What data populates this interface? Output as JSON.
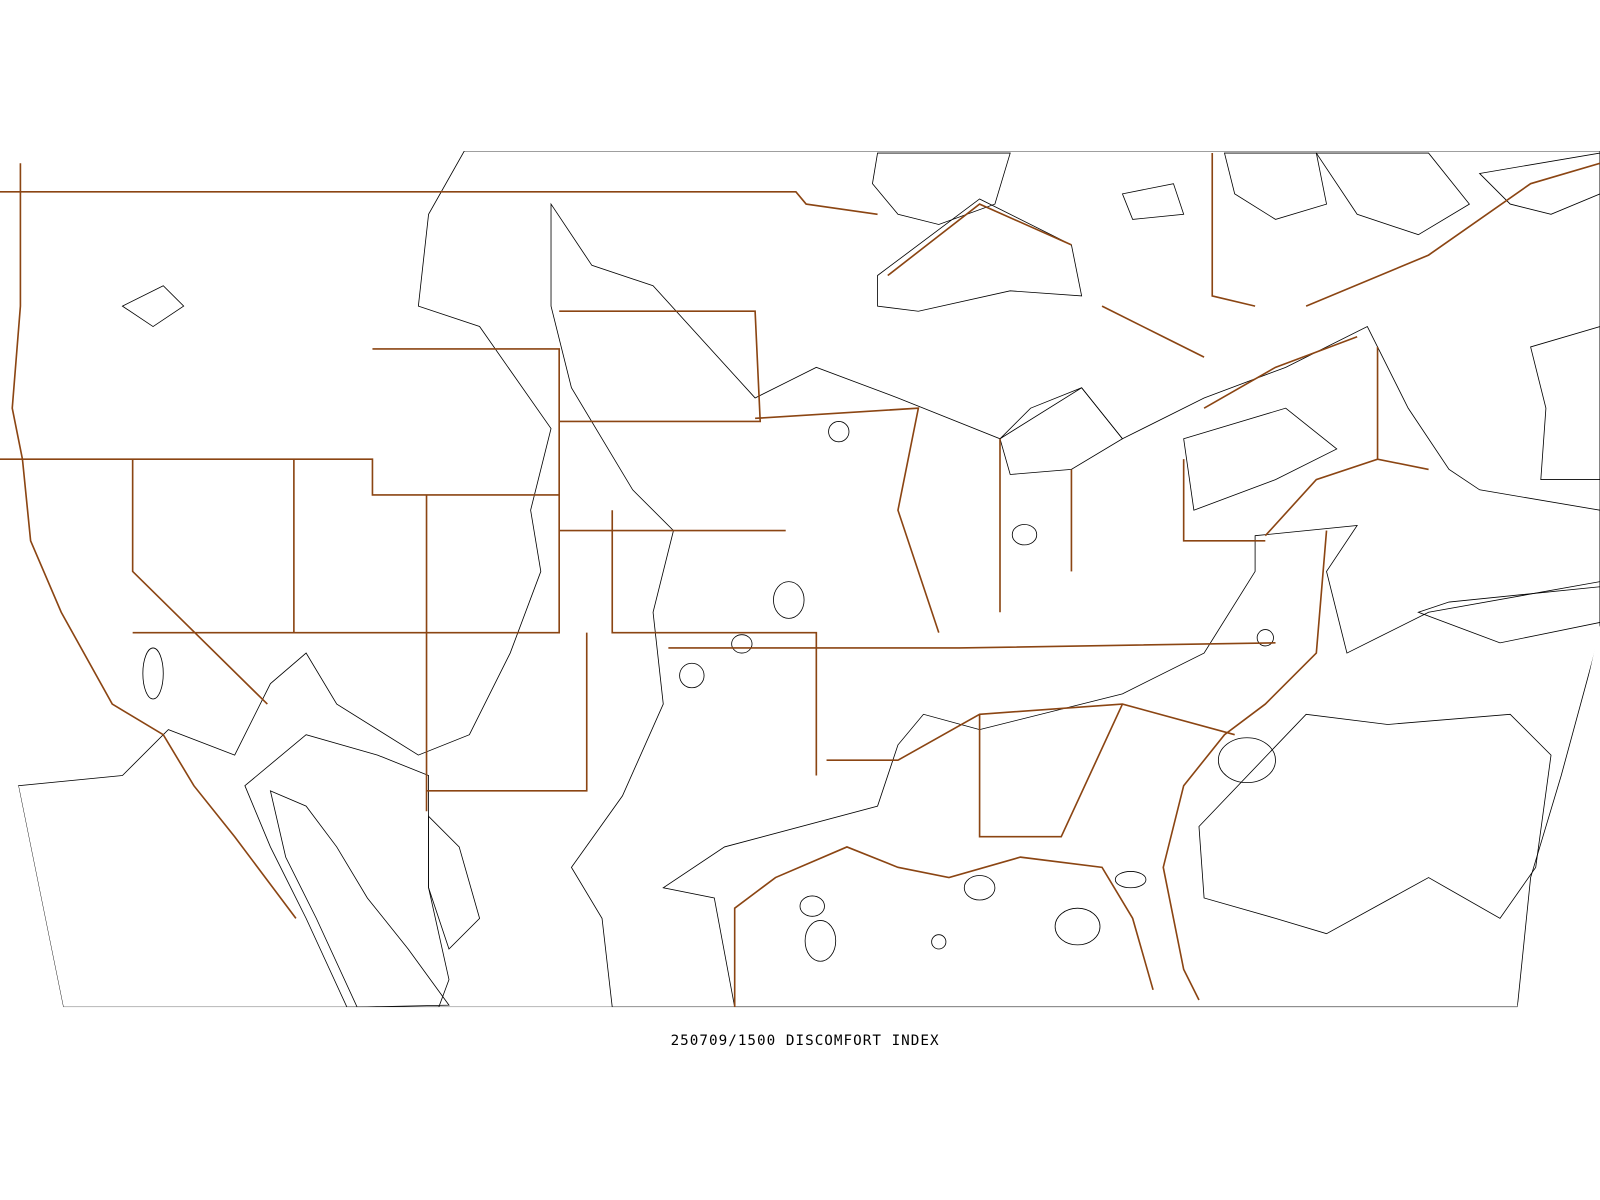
{
  "caption": "250709/1500 DISCOMFORT INDEX"
}
